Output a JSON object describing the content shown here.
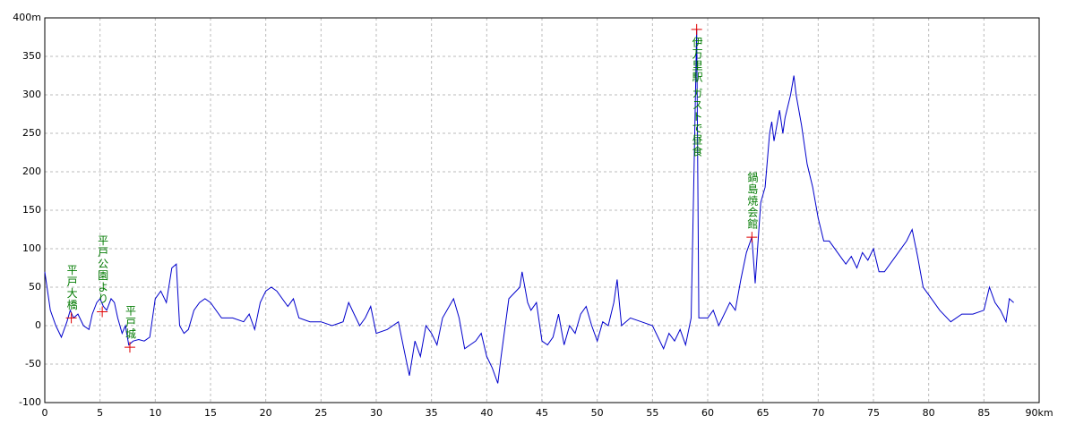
{
  "chart_data": {
    "type": "line",
    "x": [
      0,
      0.5,
      1,
      1.5,
      2,
      2.3,
      2.6,
      3,
      3.5,
      4,
      4.3,
      4.7,
      5,
      5.3,
      5.6,
      6,
      6.3,
      6.6,
      7,
      7.3,
      7.6,
      8,
      8.5,
      9,
      9.5,
      10,
      10.5,
      11,
      11.5,
      11.9,
      12.2,
      12.6,
      13,
      13.5,
      14,
      14.5,
      15,
      16,
      17,
      18,
      18.5,
      19,
      19.5,
      20,
      20.5,
      21,
      22,
      22.5,
      23,
      24,
      25,
      26,
      27,
      27.5,
      28,
      28.5,
      29,
      29.5,
      30,
      31,
      32,
      32.5,
      33,
      33.5,
      34,
      34.5,
      35,
      35.5,
      36,
      37,
      37.5,
      38,
      39,
      39.5,
      40,
      40.5,
      41,
      41.3,
      42,
      43,
      43.2,
      43.7,
      44,
      44.5,
      45,
      45.5,
      46,
      46.5,
      47,
      47.5,
      48,
      48.5,
      49,
      49.5,
      50,
      50.5,
      51,
      51.5,
      51.8,
      52.2,
      53,
      54,
      55,
      55.5,
      56,
      56.5,
      57,
      57.5,
      58,
      58.5,
      58.8,
      59,
      59.2,
      60,
      60.5,
      61,
      62,
      62.5,
      63,
      63.5,
      64,
      64.3,
      64.8,
      65.2,
      65.6,
      65.8,
      66,
      66.5,
      66.8,
      67,
      67.5,
      67.8,
      68,
      68.5,
      69,
      69.5,
      70,
      70.5,
      71,
      72,
      72.5,
      73,
      73.5,
      74,
      74.5,
      75,
      75.5,
      76,
      77,
      78,
      78.5,
      79,
      79.5,
      80,
      81,
      82,
      83,
      84,
      85,
      85.5,
      86,
      86.5,
      87,
      87.3,
      87.7
    ],
    "series": [
      {
        "color": "#0000cc",
        "values": [
          70,
          20,
          0,
          -15,
          5,
          20,
          10,
          15,
          0,
          -5,
          15,
          30,
          35,
          25,
          20,
          35,
          30,
          10,
          -10,
          0,
          -25,
          -20,
          -18,
          -20,
          -15,
          35,
          45,
          30,
          75,
          80,
          0,
          -10,
          -5,
          20,
          30,
          35,
          30,
          10,
          10,
          5,
          15,
          -5,
          30,
          45,
          50,
          45,
          25,
          35,
          10,
          5,
          5,
          0,
          5,
          30,
          15,
          0,
          10,
          25,
          -10,
          -5,
          5,
          -30,
          -65,
          -20,
          -40,
          0,
          -10,
          -25,
          10,
          35,
          10,
          -30,
          -20,
          -10,
          -40,
          -55,
          -75,
          -40,
          35,
          50,
          70,
          30,
          20,
          30,
          -20,
          -25,
          -15,
          15,
          -25,
          0,
          -10,
          15,
          25,
          0,
          -20,
          5,
          0,
          30,
          60,
          0,
          10,
          5,
          0,
          -15,
          -30,
          -10,
          -20,
          -5,
          -25,
          10,
          230,
          385,
          10,
          10,
          20,
          0,
          30,
          20,
          60,
          95,
          115,
          55,
          160,
          180,
          250,
          265,
          240,
          280,
          250,
          270,
          300,
          325,
          300,
          260,
          210,
          180,
          140,
          110,
          110,
          90,
          80,
          90,
          75,
          95,
          85,
          100,
          70,
          70,
          90,
          110,
          125,
          90,
          50,
          40,
          20,
          5,
          15,
          15,
          20,
          50,
          30,
          20,
          5,
          35,
          30
        ]
      }
    ],
    "annotations": [
      {
        "text": "平戸大橋",
        "x": 2.4,
        "y": 10
      },
      {
        "text": "平戸公園より",
        "x": 5.2,
        "y": 18
      },
      {
        "text": "平戸城",
        "x": 7.7,
        "y": -28
      },
      {
        "text": "伊万里駅 ガストで昼食",
        "x": 59,
        "y": 385
      },
      {
        "text": "鍋島焼会館",
        "x": 64,
        "y": 115
      }
    ],
    "xlim": [
      0,
      90
    ],
    "ylim": [
      -100,
      400
    ],
    "xticks": [
      0,
      5,
      10,
      15,
      20,
      25,
      30,
      35,
      40,
      45,
      50,
      55,
      60,
      65,
      70,
      75,
      80,
      85,
      {
        "value": 90,
        "label": "90km"
      }
    ],
    "yticks": [
      -100,
      -50,
      0,
      50,
      100,
      150,
      200,
      250,
      300,
      350,
      {
        "value": 400,
        "label": "400m"
      }
    ],
    "grid": true
  }
}
